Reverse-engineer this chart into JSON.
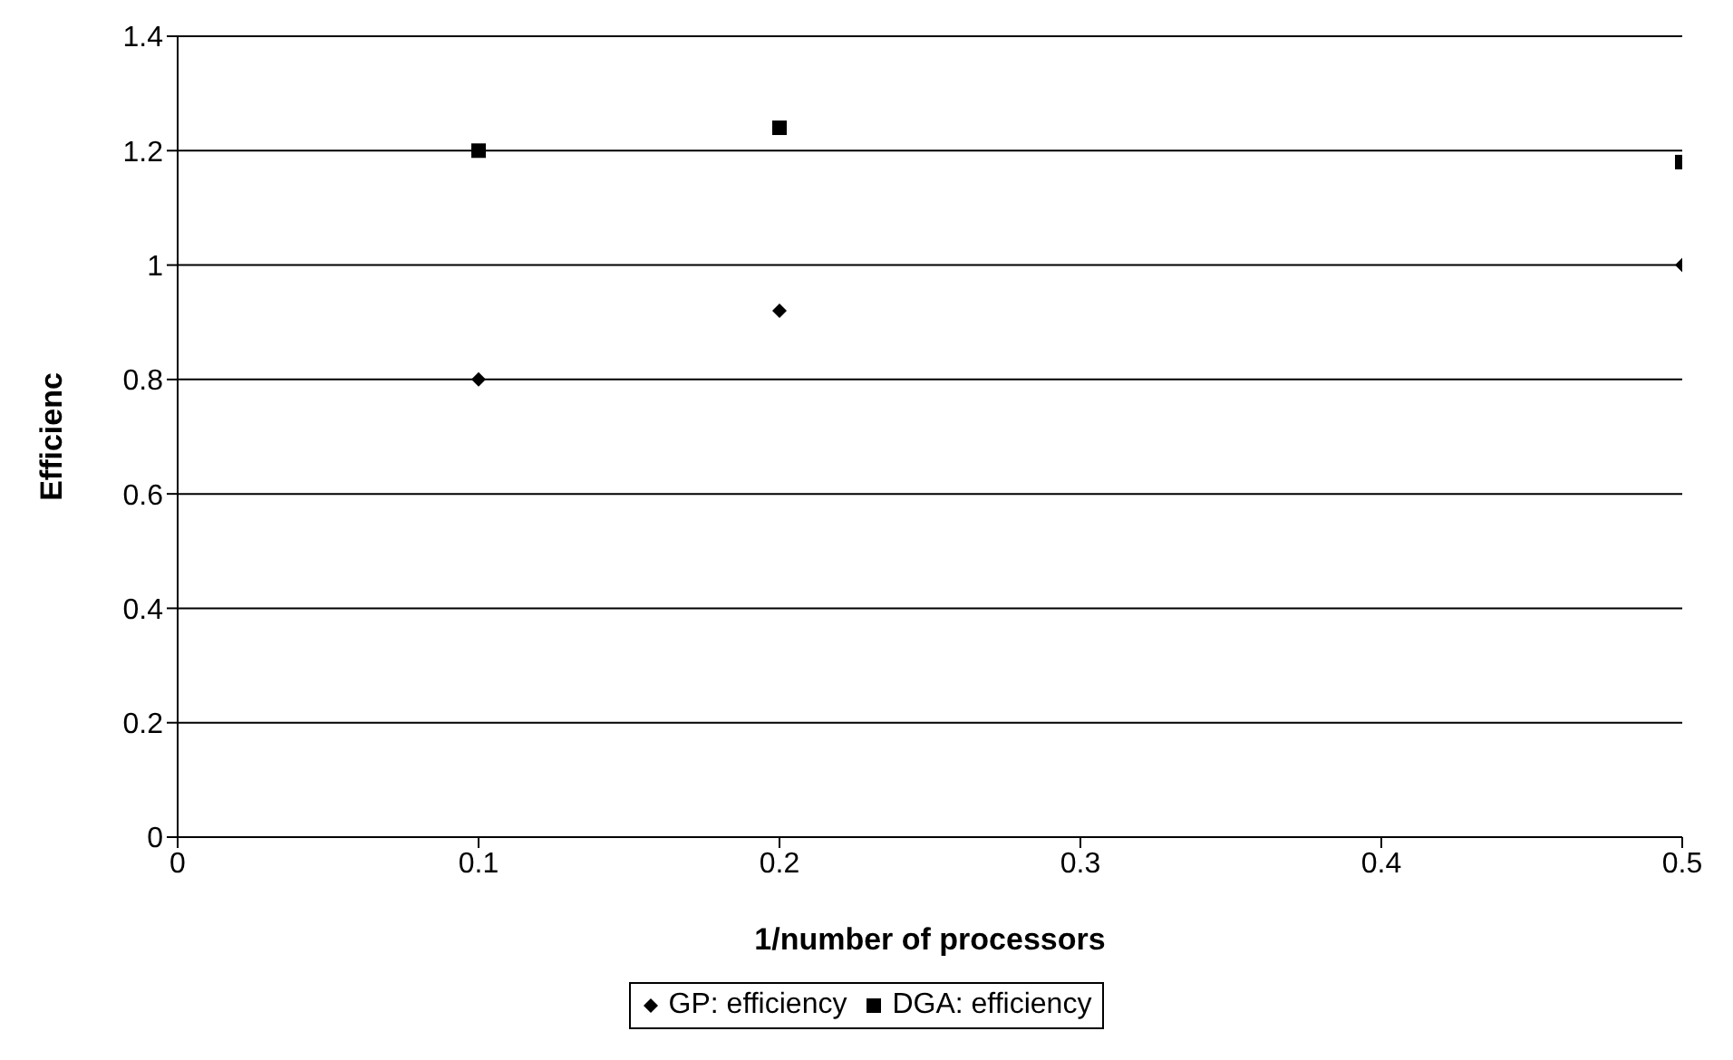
{
  "chart_data": {
    "type": "scatter",
    "xlabel": "1/number of processors",
    "ylabel": "Efficienc",
    "x": [
      0.1,
      0.2,
      0.5
    ],
    "series": [
      {
        "name": "GP: efficiency",
        "color": "#000000",
        "marker": "diamond",
        "values": [
          0.8,
          0.92,
          1.0
        ]
      },
      {
        "name": "DGA: efficiency",
        "color": "#000000",
        "marker": "square",
        "values": [
          1.2,
          1.24,
          1.18
        ]
      }
    ],
    "xlim": [
      0,
      0.5
    ],
    "xticks": [
      0,
      0.1,
      0.2,
      0.3,
      0.4,
      0.5
    ],
    "ylim": [
      0,
      1.4
    ],
    "yticks": [
      0,
      0.2,
      0.4,
      0.6,
      0.8,
      1,
      1.2,
      1.4
    ],
    "grid": "y",
    "legend": "bottom"
  }
}
